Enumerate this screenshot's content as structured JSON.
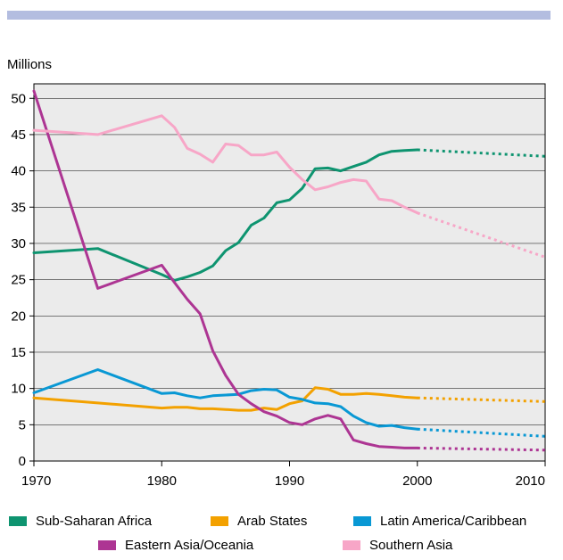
{
  "chart_data": {
    "type": "line",
    "ylabel": "Millions",
    "xlim": [
      1970,
      2010
    ],
    "ylim": [
      0,
      52
    ],
    "xticks": [
      1970,
      1980,
      1990,
      2000,
      2010
    ],
    "yticks": [
      0,
      5,
      10,
      15,
      20,
      25,
      30,
      35,
      40,
      45,
      50
    ],
    "grid": "horizontal",
    "background": "#ebebeb",
    "projection_note": "values after 2000 drawn as dotted projection",
    "series": [
      {
        "name": "Sub-Saharan Africa",
        "color": "#0e9470",
        "x": [
          1970,
          1975,
          1980,
          1981,
          1982,
          1983,
          1984,
          1985,
          1986,
          1987,
          1988,
          1989,
          1990,
          1991,
          1992,
          1993,
          1994,
          1995,
          1996,
          1997,
          1998,
          1999,
          2000
        ],
        "values": [
          28.7,
          29.3,
          25.7,
          24.9,
          25.4,
          26.0,
          26.9,
          29.0,
          30.1,
          32.5,
          33.5,
          35.6,
          36.0,
          37.6,
          40.3,
          40.4,
          40.0,
          40.6,
          41.2,
          42.2,
          42.7,
          42.8,
          42.9
        ],
        "projection": {
          "x": [
            2000,
            2010
          ],
          "values": [
            42.9,
            42.0
          ]
        }
      },
      {
        "name": "Arab States",
        "color": "#f3a100",
        "x": [
          1970,
          1975,
          1980,
          1981,
          1982,
          1983,
          1984,
          1985,
          1986,
          1987,
          1988,
          1989,
          1990,
          1991,
          1992,
          1993,
          1994,
          1995,
          1996,
          1997,
          1998,
          1999,
          2000
        ],
        "values": [
          8.7,
          8.0,
          7.3,
          7.4,
          7.4,
          7.2,
          7.2,
          7.1,
          7.0,
          7.0,
          7.3,
          7.1,
          7.9,
          8.3,
          10.1,
          9.9,
          9.2,
          9.2,
          9.3,
          9.2,
          9.0,
          8.8,
          8.7
        ],
        "projection": {
          "x": [
            2000,
            2010
          ],
          "values": [
            8.7,
            8.2
          ]
        }
      },
      {
        "name": "Latin America/Caribbean",
        "color": "#0998d4",
        "x": [
          1970,
          1975,
          1980,
          1981,
          1982,
          1983,
          1984,
          1985,
          1986,
          1987,
          1988,
          1989,
          1990,
          1991,
          1992,
          1993,
          1994,
          1995,
          1996,
          1997,
          1998,
          1999,
          2000
        ],
        "values": [
          9.4,
          12.6,
          9.3,
          9.4,
          9.0,
          8.7,
          9.0,
          9.1,
          9.2,
          9.7,
          9.9,
          9.8,
          8.8,
          8.5,
          8.0,
          7.9,
          7.5,
          6.2,
          5.3,
          4.8,
          4.9,
          4.6,
          4.4
        ],
        "projection": {
          "x": [
            2000,
            2010
          ],
          "values": [
            4.4,
            3.4
          ]
        }
      },
      {
        "name": "Eastern Asia/Oceania",
        "color": "#ad3593",
        "x": [
          1970,
          1975,
          1980,
          1981,
          1982,
          1983,
          1984,
          1985,
          1986,
          1987,
          1988,
          1989,
          1990,
          1991,
          1992,
          1993,
          1994,
          1995,
          1996,
          1997,
          1998,
          1999,
          2000
        ],
        "values": [
          51.0,
          23.8,
          27.0,
          24.6,
          22.3,
          20.3,
          15.2,
          11.8,
          9.2,
          7.9,
          6.8,
          6.2,
          5.3,
          5.0,
          5.8,
          6.3,
          5.8,
          2.9,
          2.4,
          2.0,
          1.9,
          1.8,
          1.8
        ],
        "projection": {
          "x": [
            2000,
            2010
          ],
          "values": [
            1.8,
            1.5
          ]
        }
      },
      {
        "name": "Southern Asia",
        "color": "#f7a6c7",
        "x": [
          1970,
          1975,
          1980,
          1981,
          1982,
          1983,
          1984,
          1985,
          1986,
          1987,
          1988,
          1989,
          1990,
          1991,
          1992,
          1993,
          1994,
          1995,
          1996,
          1997,
          1998,
          1999,
          2000
        ],
        "values": [
          45.6,
          45.0,
          47.6,
          46.0,
          43.1,
          42.3,
          41.2,
          43.7,
          43.5,
          42.2,
          42.2,
          42.6,
          40.5,
          38.8,
          37.4,
          37.8,
          38.4,
          38.8,
          38.6,
          36.1,
          35.9,
          35.0,
          34.2
        ],
        "projection": {
          "x": [
            2000,
            2010
          ],
          "values": [
            34.2,
            28.1
          ]
        }
      }
    ]
  }
}
